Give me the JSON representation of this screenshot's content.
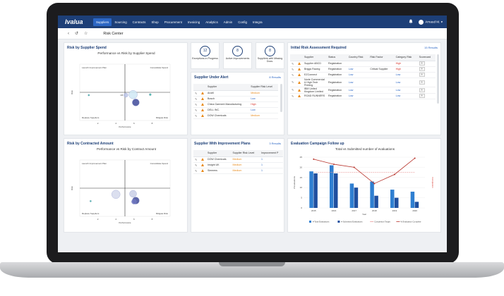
{
  "app": {
    "logo": "Ivalua",
    "user": "Arnaud M.",
    "page_title": "Risk Center"
  },
  "nav": [
    {
      "label": "Suppliers",
      "active": true
    },
    {
      "label": "Sourcing"
    },
    {
      "label": "Contracts"
    },
    {
      "label": "Shop"
    },
    {
      "label": "Procurement"
    },
    {
      "label": "Invoicing"
    },
    {
      "label": "Analytics"
    },
    {
      "label": "Admin"
    },
    {
      "label": "Config"
    },
    {
      "label": "Integra"
    }
  ],
  "icons": [
    "bell-icon",
    "user-icon",
    "chevron-down-icon",
    "back-icon",
    "history-icon",
    "star-icon",
    "pencil-icon",
    "warning-icon"
  ],
  "colors": {
    "topbar": "#1d3f77",
    "accent": "#2b66c4",
    "medium": "#e88a1a",
    "high": "#d7342b"
  },
  "panels": {
    "spend": {
      "title": "Risk by Supplier Spend"
    },
    "contracted": {
      "title": "Risk by Contracted Amount"
    },
    "alert": {
      "title": "Supplier Under Alert",
      "results": "8 Results"
    },
    "improvement": {
      "title": "Supplier With Improvement Plans",
      "results": "3 Results"
    },
    "initial": {
      "title": "Initial Risk Assessment Required",
      "results": "15 Results"
    },
    "evaluation": {
      "title": "Evaluation Campaign Follow up"
    }
  },
  "kpis": [
    {
      "value": "12",
      "label": "Exceptions in Progress"
    },
    {
      "value": "8",
      "label": "Active Improvements"
    },
    {
      "value": "8",
      "label": "Suppliers with Missing Docs."
    }
  ],
  "alert_table": {
    "headers": [
      "Supplier",
      "Supplier Risk Level"
    ],
    "rows": [
      {
        "supplier": "Arcell",
        "level": "Medium"
      },
      {
        "supplier": "Bosch",
        "level": "Low"
      },
      {
        "supplier": "China Garment Manufacturing",
        "level": "High"
      },
      {
        "supplier": "DELL INC.",
        "level": "Low"
      },
      {
        "supplier": "DOW Chemicals",
        "level": "Medium"
      }
    ]
  },
  "improvement_table": {
    "headers": [
      "Supplier",
      "Supplier Risk Level",
      "Improvement P"
    ],
    "rows": [
      {
        "supplier": "DOW Chemicals",
        "level": "Medium",
        "count": "1"
      },
      {
        "supplier": "Insight UK",
        "level": "Medium",
        "count": "1"
      },
      {
        "supplier": "Siemens",
        "level": "Medium",
        "count": "1"
      }
    ]
  },
  "initial_table": {
    "headers": [
      "Supplier",
      "Status",
      "Country Risk",
      "Risk Factor",
      "Category Risk",
      "Scorecard"
    ],
    "rows": [
      {
        "supplier": "Supplier ABCD",
        "status": "Registration",
        "country": "",
        "factor": "",
        "category": "High"
      },
      {
        "supplier": "Briggs Racing",
        "status": "Registration",
        "country": "Low",
        "factor": "Critical Supplier",
        "category": "High"
      },
      {
        "supplier": "EZConnect",
        "status": "Registration",
        "country": "Low",
        "factor": "",
        "category": "Low"
      },
      {
        "supplier": "Norte Commercial & High Tech Printing",
        "status": "Registration",
        "country": "Low",
        "factor": "",
        "category": "Low"
      },
      {
        "supplier": "IBM United Kingdom Limited",
        "status": "Registration",
        "country": "Low",
        "factor": "",
        "category": "Low"
      },
      {
        "supplier": "ROAD RUNNERS",
        "status": "Registration",
        "country": "Low",
        "factor": "",
        "category": "Low"
      }
    ]
  },
  "chart_data": [
    {
      "type": "scatter",
      "title": "Performance vs Risk by Supplier Spend",
      "xlabel": "Performance",
      "ylabel": "Risk",
      "quadrants": [
        "Launch Improvement Plan",
        "Consolidate Spend",
        "Replace Suppliers",
        "Mitigate Risk"
      ],
      "x_ticks": [
        "2",
        "4",
        "6",
        "8"
      ],
      "y_ticks": [
        "",
        "",
        "",
        ""
      ],
      "xlim": [
        0,
        10
      ],
      "ylim": [
        0,
        10
      ],
      "points": [
        {
          "x": 5.1,
          "y": 4.5,
          "r": 3,
          "label": "CB",
          "color": "#bcc5e6"
        },
        {
          "x": 5.9,
          "y": 4.6,
          "r": 6,
          "label": "",
          "color": "#cfe8f5"
        },
        {
          "x": 6.2,
          "y": 3.2,
          "r": 5,
          "label": "",
          "color": "#3f4a9a"
        },
        {
          "x": 7.8,
          "y": 4.6,
          "r": 1.5,
          "label": "",
          "color": "#35b59d"
        },
        {
          "x": 1.0,
          "y": 4.5,
          "r": 1.2,
          "label": "",
          "color": "#35b59d"
        }
      ]
    },
    {
      "type": "scatter",
      "title": "Performance vs Risk by Contract Amount",
      "xlabel": "Performance",
      "ylabel": "Risk",
      "quadrants": [
        "Launch Improvement Plan",
        "Consolidate Spend",
        "Replace Suppliers",
        "Mitigate Risk"
      ],
      "x_ticks": [
        "2",
        "4",
        "6",
        "8"
      ],
      "xlim": [
        0,
        10
      ],
      "ylim": [
        0,
        10
      ],
      "points": [
        {
          "x": 4.0,
          "y": 3.9,
          "r": 6,
          "label": "",
          "color": "#d5d9ec"
        },
        {
          "x": 5.9,
          "y": 4.0,
          "r": 5,
          "label": "",
          "color": "#c9cfe6"
        },
        {
          "x": 6.2,
          "y": 2.8,
          "r": 5,
          "label": "",
          "color": "#3f4a9a"
        },
        {
          "x": 6.0,
          "y": 2.6,
          "r": 3.5,
          "label": "",
          "color": "#6d76c0"
        },
        {
          "x": 1.2,
          "y": 2.7,
          "r": 1.2,
          "label": "",
          "color": "#35b59d"
        }
      ]
    },
    {
      "type": "bar",
      "title": "Total vs Submitted number of evaluations",
      "categories": [
        "2015",
        "2016",
        "2017",
        "2018",
        "2019",
        "2020"
      ],
      "ylabel": "# Evaluations",
      "y2label": "Completion",
      "xlabel": "Year",
      "ylim": [
        0,
        25
      ],
      "y_ticks": [
        "0",
        "5",
        "10",
        "15",
        "20",
        "25"
      ],
      "series": [
        {
          "name": "# Total Evaluations",
          "type": "bar",
          "color": "#2f7fd1",
          "values": [
            18,
            21,
            12,
            13,
            9,
            8
          ]
        },
        {
          "name": "# Submitted Evaluations",
          "type": "bar",
          "color": "#1f4f9f",
          "values": [
            17,
            17,
            10,
            6,
            5,
            3
          ]
        },
        {
          "name": "Completion Target",
          "type": "line",
          "color": "#e99b9b",
          "values": [
            17.5,
            17.5,
            17.5,
            17.5,
            17.5,
            17.5
          ]
        },
        {
          "name": "% Evaluation Complete",
          "type": "line",
          "color": "#b8352d",
          "values": [
            24.0,
            21.5,
            20.0,
            12.0,
            16.5,
            24.5
          ]
        }
      ]
    }
  ]
}
